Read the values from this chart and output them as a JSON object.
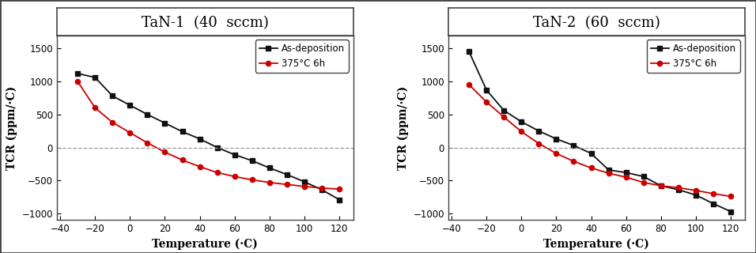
{
  "panel1_title": "TaN-1  (40  sccm)",
  "panel2_title": "TaN-2  (60  sccm)",
  "xlabel": "Temperature (·C)",
  "ylabel": "TCR (ppm/·C)",
  "legend1": "As-deposition",
  "legend2": "375°C 6h",
  "ylim": [
    -1100,
    1700
  ],
  "xlim": [
    -42,
    128
  ],
  "xticks": [
    -40,
    -20,
    0,
    20,
    40,
    60,
    80,
    100,
    120
  ],
  "yticks": [
    -1000,
    -500,
    0,
    500,
    1000,
    1500
  ],
  "p1_black_x": [
    -30,
    -20,
    -10,
    0,
    10,
    20,
    30,
    40,
    50,
    60,
    70,
    80,
    90,
    100,
    110,
    120
  ],
  "p1_black_y": [
    1120,
    1060,
    780,
    640,
    500,
    370,
    240,
    130,
    0,
    -110,
    -200,
    -310,
    -410,
    -520,
    -640,
    -790
  ],
  "p1_red_x": [
    -30,
    -20,
    -10,
    0,
    10,
    20,
    30,
    40,
    50,
    60,
    70,
    80,
    90,
    100,
    110,
    120
  ],
  "p1_red_y": [
    1000,
    600,
    380,
    225,
    70,
    -70,
    -190,
    -290,
    -380,
    -440,
    -490,
    -530,
    -560,
    -590,
    -615,
    -630
  ],
  "p2_black_x": [
    -30,
    -20,
    -10,
    0,
    10,
    20,
    30,
    40,
    50,
    60,
    70,
    80,
    90,
    100,
    110,
    120
  ],
  "p2_black_y": [
    1450,
    870,
    560,
    390,
    250,
    130,
    30,
    -90,
    -340,
    -380,
    -440,
    -580,
    -640,
    -720,
    -850,
    -970
  ],
  "p2_red_x": [
    -30,
    -20,
    -10,
    0,
    10,
    20,
    30,
    40,
    50,
    60,
    70,
    80,
    90,
    100,
    110,
    120
  ],
  "p2_red_y": [
    950,
    690,
    460,
    240,
    60,
    -90,
    -210,
    -310,
    -390,
    -450,
    -530,
    -580,
    -610,
    -650,
    -700,
    -740
  ],
  "black_color": "#111111",
  "red_color": "#cc0000",
  "dashed_color": "#999999",
  "border_color": "#444444",
  "bg_color": "#ffffff",
  "title_fontsize": 13,
  "axis_label_fontsize": 10,
  "tick_fontsize": 8.5,
  "legend_fontsize": 8.5
}
